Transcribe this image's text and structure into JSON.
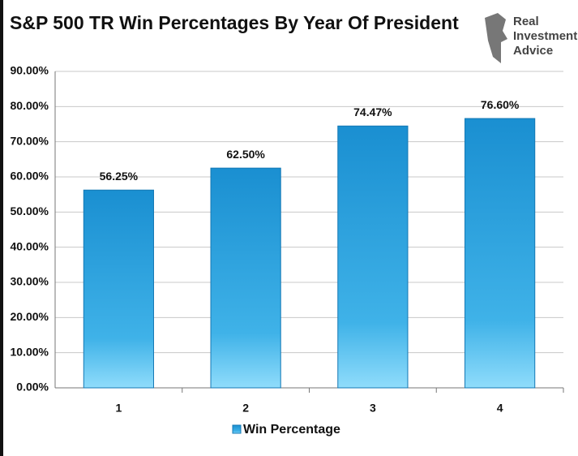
{
  "chart_data": {
    "type": "bar",
    "title": "S&P 500 TR Win Percentages By Year Of President",
    "logo": [
      "Real",
      "Investment",
      "Advice"
    ],
    "categories": [
      "1",
      "2",
      "3",
      "4"
    ],
    "series": [
      {
        "name": "Win Percentage",
        "color": "#1a8fd1",
        "values": [
          56.25,
          62.5,
          74.47,
          76.6
        ],
        "value_labels": [
          "56.25%",
          "62.50%",
          "74.47%",
          "76.60%"
        ]
      }
    ],
    "ylim": [
      0,
      90
    ],
    "yticks": [
      {
        "value": 0,
        "label": "0.00%"
      },
      {
        "value": 10,
        "label": "10.00%"
      },
      {
        "value": 20,
        "label": "20.00%"
      },
      {
        "value": 30,
        "label": "30.00%"
      },
      {
        "value": 40,
        "label": "40.00%"
      },
      {
        "value": 50,
        "label": "50.00%"
      },
      {
        "value": 60,
        "label": "60.00%"
      },
      {
        "value": 70,
        "label": "70.00%"
      },
      {
        "value": 80,
        "label": "80.00%"
      },
      {
        "value": 90,
        "label": "90.00%"
      }
    ],
    "grid": true,
    "legend": "bottom"
  }
}
